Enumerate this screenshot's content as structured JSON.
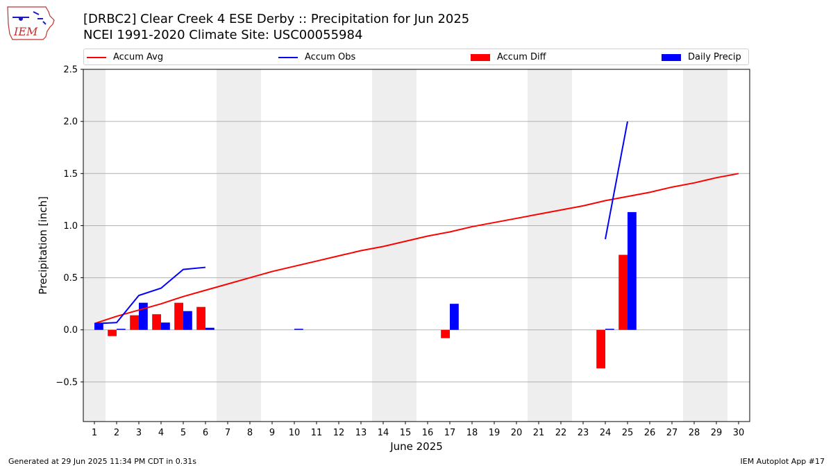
{
  "header": {
    "title_line1": "[DRBC2] Clear Creek 4 ESE Derby :: Precipitation for Jun 2025",
    "title_line2": "NCEI 1991-2020 Climate Site: USC00055984",
    "logo_text": "IEM"
  },
  "footer": {
    "left": "Generated at 29 Jun 2025 11:34 PM CDT in 0.31s",
    "right": "IEM Autoplot App #17"
  },
  "legend": {
    "items": [
      {
        "label": "Accum Avg",
        "kind": "line",
        "color": "#ff0000"
      },
      {
        "label": "Accum Obs",
        "kind": "line",
        "color": "#0000ff"
      },
      {
        "label": "Accum Diff",
        "kind": "patch",
        "color": "#ff0000"
      },
      {
        "label": "Daily Precip",
        "kind": "patch",
        "color": "#0000ff"
      }
    ]
  },
  "colors": {
    "avg": "#ff0000",
    "obs": "#0000ff",
    "diff": "#ff0000",
    "daily": "#0000ff",
    "weekend_shade": "#eeeeee",
    "grid": "#b0b0b0"
  },
  "chart_data": {
    "type": "bar",
    "title": "[DRBC2] Clear Creek 4 ESE Derby :: Precipitation for Jun 2025",
    "subtitle": "NCEI 1991-2020 Climate Site: USC00055984",
    "xlabel": "June 2025",
    "ylabel": "Precipitation [inch]",
    "ylim": [
      -0.88,
      2.5
    ],
    "y_ticks": [
      -0.5,
      0.0,
      0.5,
      1.0,
      1.5,
      2.0,
      2.5
    ],
    "y_tick_labels": [
      "−0.5",
      "0.0",
      "0.5",
      "1.0",
      "1.5",
      "2.0",
      "2.5"
    ],
    "x_ticks": [
      1,
      2,
      3,
      4,
      5,
      6,
      7,
      8,
      9,
      10,
      11,
      12,
      13,
      14,
      15,
      16,
      17,
      18,
      19,
      20,
      21,
      22,
      23,
      24,
      25,
      26,
      27,
      28,
      29,
      30
    ],
    "grid": "horizontal",
    "legend_position": "top",
    "weekend_shaded_days": [
      1,
      7,
      8,
      14,
      15,
      21,
      22,
      28,
      29
    ],
    "series": [
      {
        "name": "Accum Avg",
        "type": "line",
        "x": [
          1,
          2,
          3,
          4,
          5,
          6,
          7,
          8,
          9,
          10,
          11,
          12,
          13,
          14,
          15,
          16,
          17,
          18,
          19,
          20,
          21,
          22,
          23,
          24,
          25,
          26,
          27,
          28,
          29,
          30
        ],
        "values": [
          0.06,
          0.13,
          0.19,
          0.25,
          0.32,
          0.38,
          0.44,
          0.5,
          0.56,
          0.61,
          0.66,
          0.71,
          0.76,
          0.8,
          0.85,
          0.9,
          0.94,
          0.99,
          1.03,
          1.07,
          1.11,
          1.15,
          1.19,
          1.24,
          1.28,
          1.32,
          1.37,
          1.41,
          1.46,
          1.5
        ]
      },
      {
        "name": "Accum Obs",
        "type": "line",
        "segments": [
          {
            "x": [
              1,
              2,
              3,
              4,
              5,
              6
            ],
            "values": [
              0.06,
              0.07,
              0.33,
              0.4,
              0.58,
              0.6
            ]
          },
          {
            "x": [
              24,
              25
            ],
            "values": [
              0.87,
              2.0
            ]
          }
        ]
      },
      {
        "name": "Accum Diff",
        "type": "bar",
        "x": [
          1,
          2,
          3,
          4,
          5,
          6,
          17,
          24,
          25
        ],
        "values": [
          0.0,
          -0.06,
          0.14,
          0.15,
          0.26,
          0.22,
          -0.08,
          -0.37,
          0.72
        ]
      },
      {
        "name": "Daily Precip",
        "type": "bar",
        "x": [
          1,
          2,
          3,
          4,
          5,
          6,
          10,
          17,
          24,
          25
        ],
        "values": [
          0.06,
          0.01,
          0.26,
          0.07,
          0.18,
          0.02,
          0.01,
          0.25,
          0.01,
          1.13
        ]
      }
    ]
  }
}
